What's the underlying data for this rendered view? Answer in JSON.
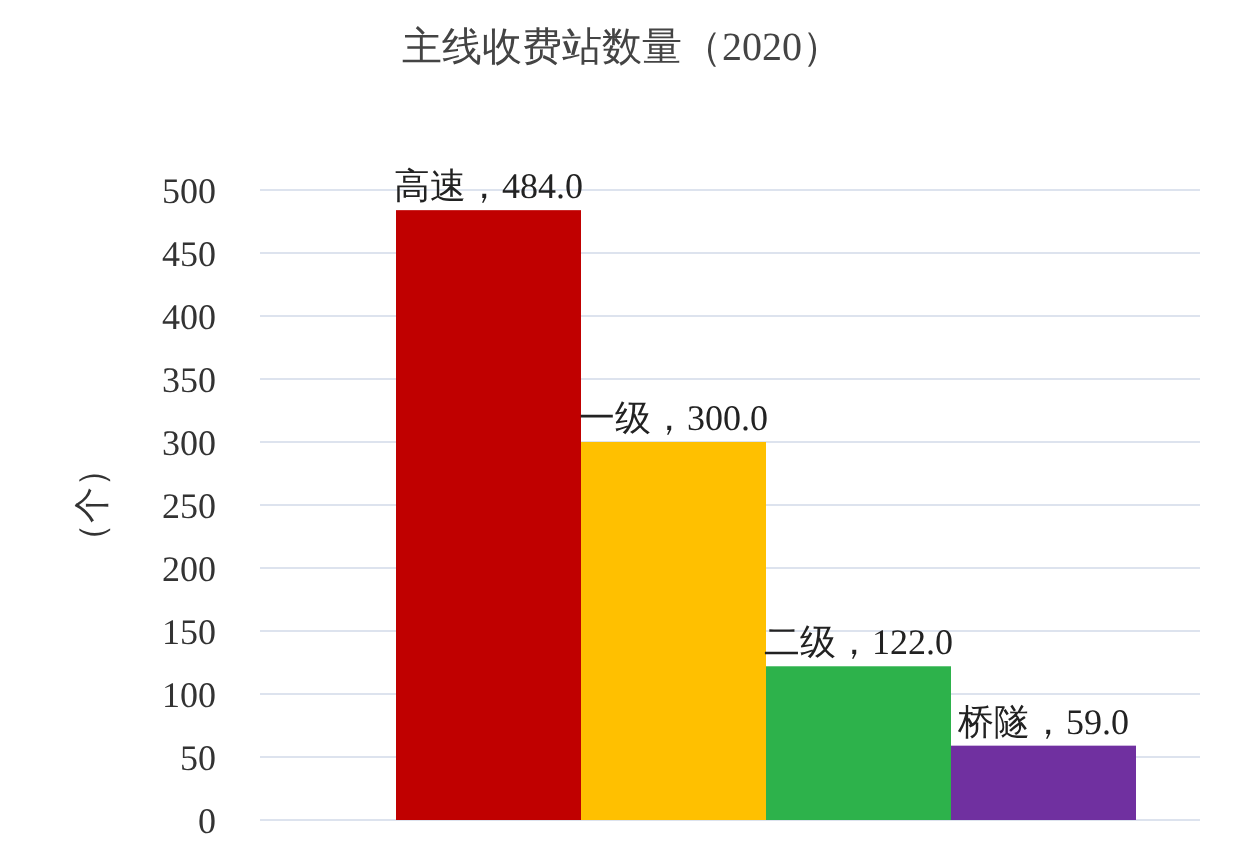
{
  "chart_data": {
    "type": "bar",
    "title": "主线收费站数量（2020）",
    "ylabel": "（个）",
    "categories": [
      null,
      null,
      null,
      null
    ],
    "values": [
      484.0,
      300.0,
      122.0,
      59.0
    ],
    "colors": [
      "#c00000",
      "#ffc000",
      "#2db24b",
      "#7030a0"
    ],
    "value_labels": [
      "高速，484.0",
      "一级，300.0",
      "二级，122.0",
      "桥隧，59.0"
    ],
    "ylim": [
      0,
      500
    ],
    "yticks": [
      0,
      50,
      100,
      150,
      200,
      250,
      300,
      350,
      400,
      450,
      500
    ],
    "grid": "y"
  }
}
